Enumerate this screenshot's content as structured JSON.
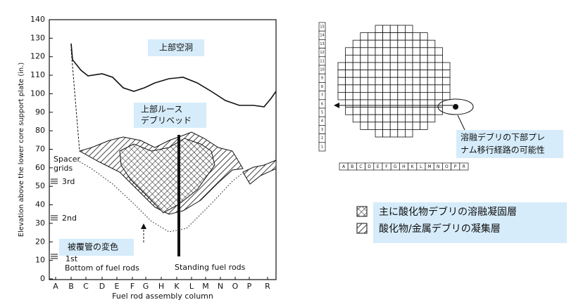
{
  "plot": {
    "y_axis_title": "Elevation above the lower core support plate (in.)",
    "x_axis_title": "Fuel rod assembly column",
    "yticks": [
      0,
      10,
      20,
      30,
      40,
      50,
      60,
      70,
      80,
      90,
      100,
      110,
      120,
      130,
      140
    ],
    "columns": [
      "A",
      "B",
      "C",
      "D",
      "E",
      "F",
      "G",
      "H",
      "K",
      "L",
      "M",
      "N",
      "O",
      "P",
      "R"
    ]
  },
  "annotations": {
    "upper_cavity": "上部空洞",
    "upper_debris": [
      "上部ルース",
      "デブリベッド"
    ],
    "cladding": "被覆管の変色",
    "spacer": [
      "Spacer",
      "grids"
    ],
    "grid_3rd": "3rd",
    "grid_2nd": "2nd",
    "grid_1st": "1st",
    "bottom": "Bottom of fuel rods",
    "standing": "Standing fuel rods"
  },
  "core_map": {
    "rows": [
      "15",
      "14",
      "13",
      "12",
      "11",
      "10",
      "9",
      "8",
      "7",
      "6",
      "5",
      "4",
      "3",
      "2",
      "1"
    ],
    "callout": [
      "溶融デブリの下部プレ",
      "ナム移行経路の可能性"
    ]
  },
  "legend": [
    "主に酸化物デブリの溶融凝固層",
    "酸化物/金属デブリの凝集層"
  ]
}
